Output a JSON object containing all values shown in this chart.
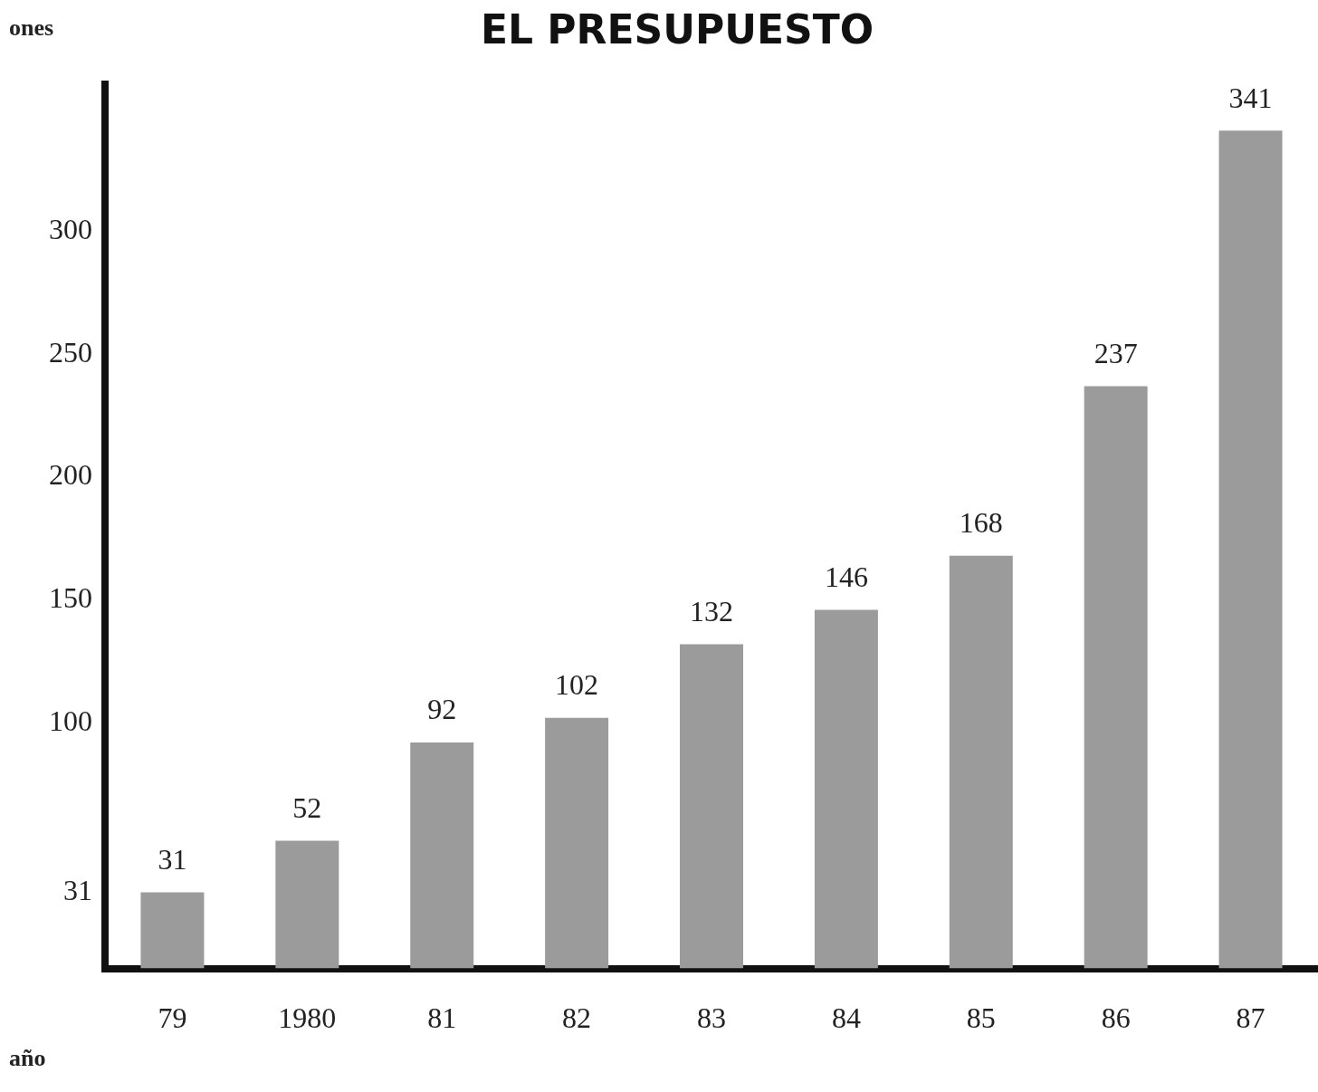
{
  "chart_data": {
    "type": "bar",
    "title": "EL PRESUPUESTO",
    "ylabel": "ones",
    "xlabel": "año",
    "categories": [
      "79",
      "1980",
      "81",
      "82",
      "83",
      "84",
      "85",
      "86",
      "87"
    ],
    "values": [
      31,
      52,
      92,
      102,
      132,
      146,
      168,
      237,
      341
    ],
    "color": "#9b9b9b",
    "ylim": [
      0,
      360
    ],
    "yticks": [
      31,
      100,
      150,
      200,
      250,
      300
    ],
    "data_labels": true,
    "grid": false,
    "legend": false
  }
}
